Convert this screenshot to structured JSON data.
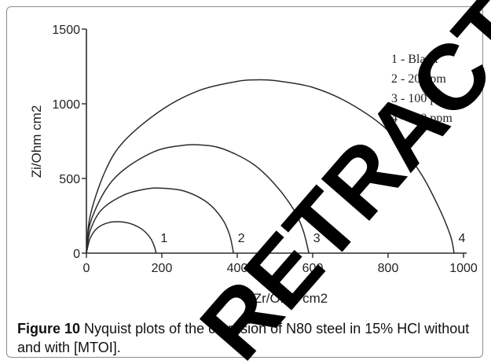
{
  "figure": {
    "caption_label": "Figure 10",
    "caption_text": "Nyquist plots of the corrosion of N80 steel in 15% HCl without and with [MTOI].",
    "watermark_text": "RETRACTED ARTICLE"
  },
  "chart_data": {
    "type": "line",
    "title": "",
    "xlabel": "Zr/Ohm cm2",
    "ylabel": "Zi/Ohm cm2",
    "xlim": [
      0,
      1000
    ],
    "ylim": [
      0,
      1500
    ],
    "x_ticks": [
      "0",
      "200",
      "400",
      "600",
      "800",
      "1000"
    ],
    "y_ticks": [
      "0",
      "500",
      "1000",
      "1500"
    ],
    "legend": [
      "1 - Blank",
      "2 - 20 ppm",
      "3 - 100 ppm",
      "4 - 200 ppm"
    ],
    "legend_position": "top-right",
    "series": [
      {
        "name": "1",
        "x": [
          0,
          10,
          30,
          60,
          90,
          120,
          150,
          170,
          180,
          185
        ],
        "y": [
          0,
          100,
          170,
          205,
          210,
          195,
          155,
          100,
          45,
          0
        ]
      },
      {
        "name": "2",
        "x": [
          0,
          10,
          40,
          100,
          160,
          200,
          260,
          320,
          360,
          380,
          390
        ],
        "y": [
          0,
          150,
          290,
          390,
          430,
          435,
          415,
          340,
          230,
          120,
          0
        ]
      },
      {
        "name": "3",
        "x": [
          0,
          10,
          50,
          100,
          180,
          250,
          300,
          360,
          440,
          500,
          550,
          575,
          590
        ],
        "y": [
          0,
          200,
          420,
          560,
          680,
          720,
          725,
          700,
          600,
          460,
          290,
          150,
          0
        ]
      },
      {
        "name": "4",
        "x": [
          0,
          10,
          50,
          100,
          200,
          300,
          400,
          450,
          500,
          600,
          700,
          800,
          880,
          930,
          965,
          975
        ],
        "y": [
          0,
          250,
          550,
          750,
          960,
          1090,
          1150,
          1160,
          1155,
          1110,
          1000,
          820,
          560,
          330,
          120,
          0
        ]
      }
    ],
    "line_color": "#2b2b2b"
  }
}
